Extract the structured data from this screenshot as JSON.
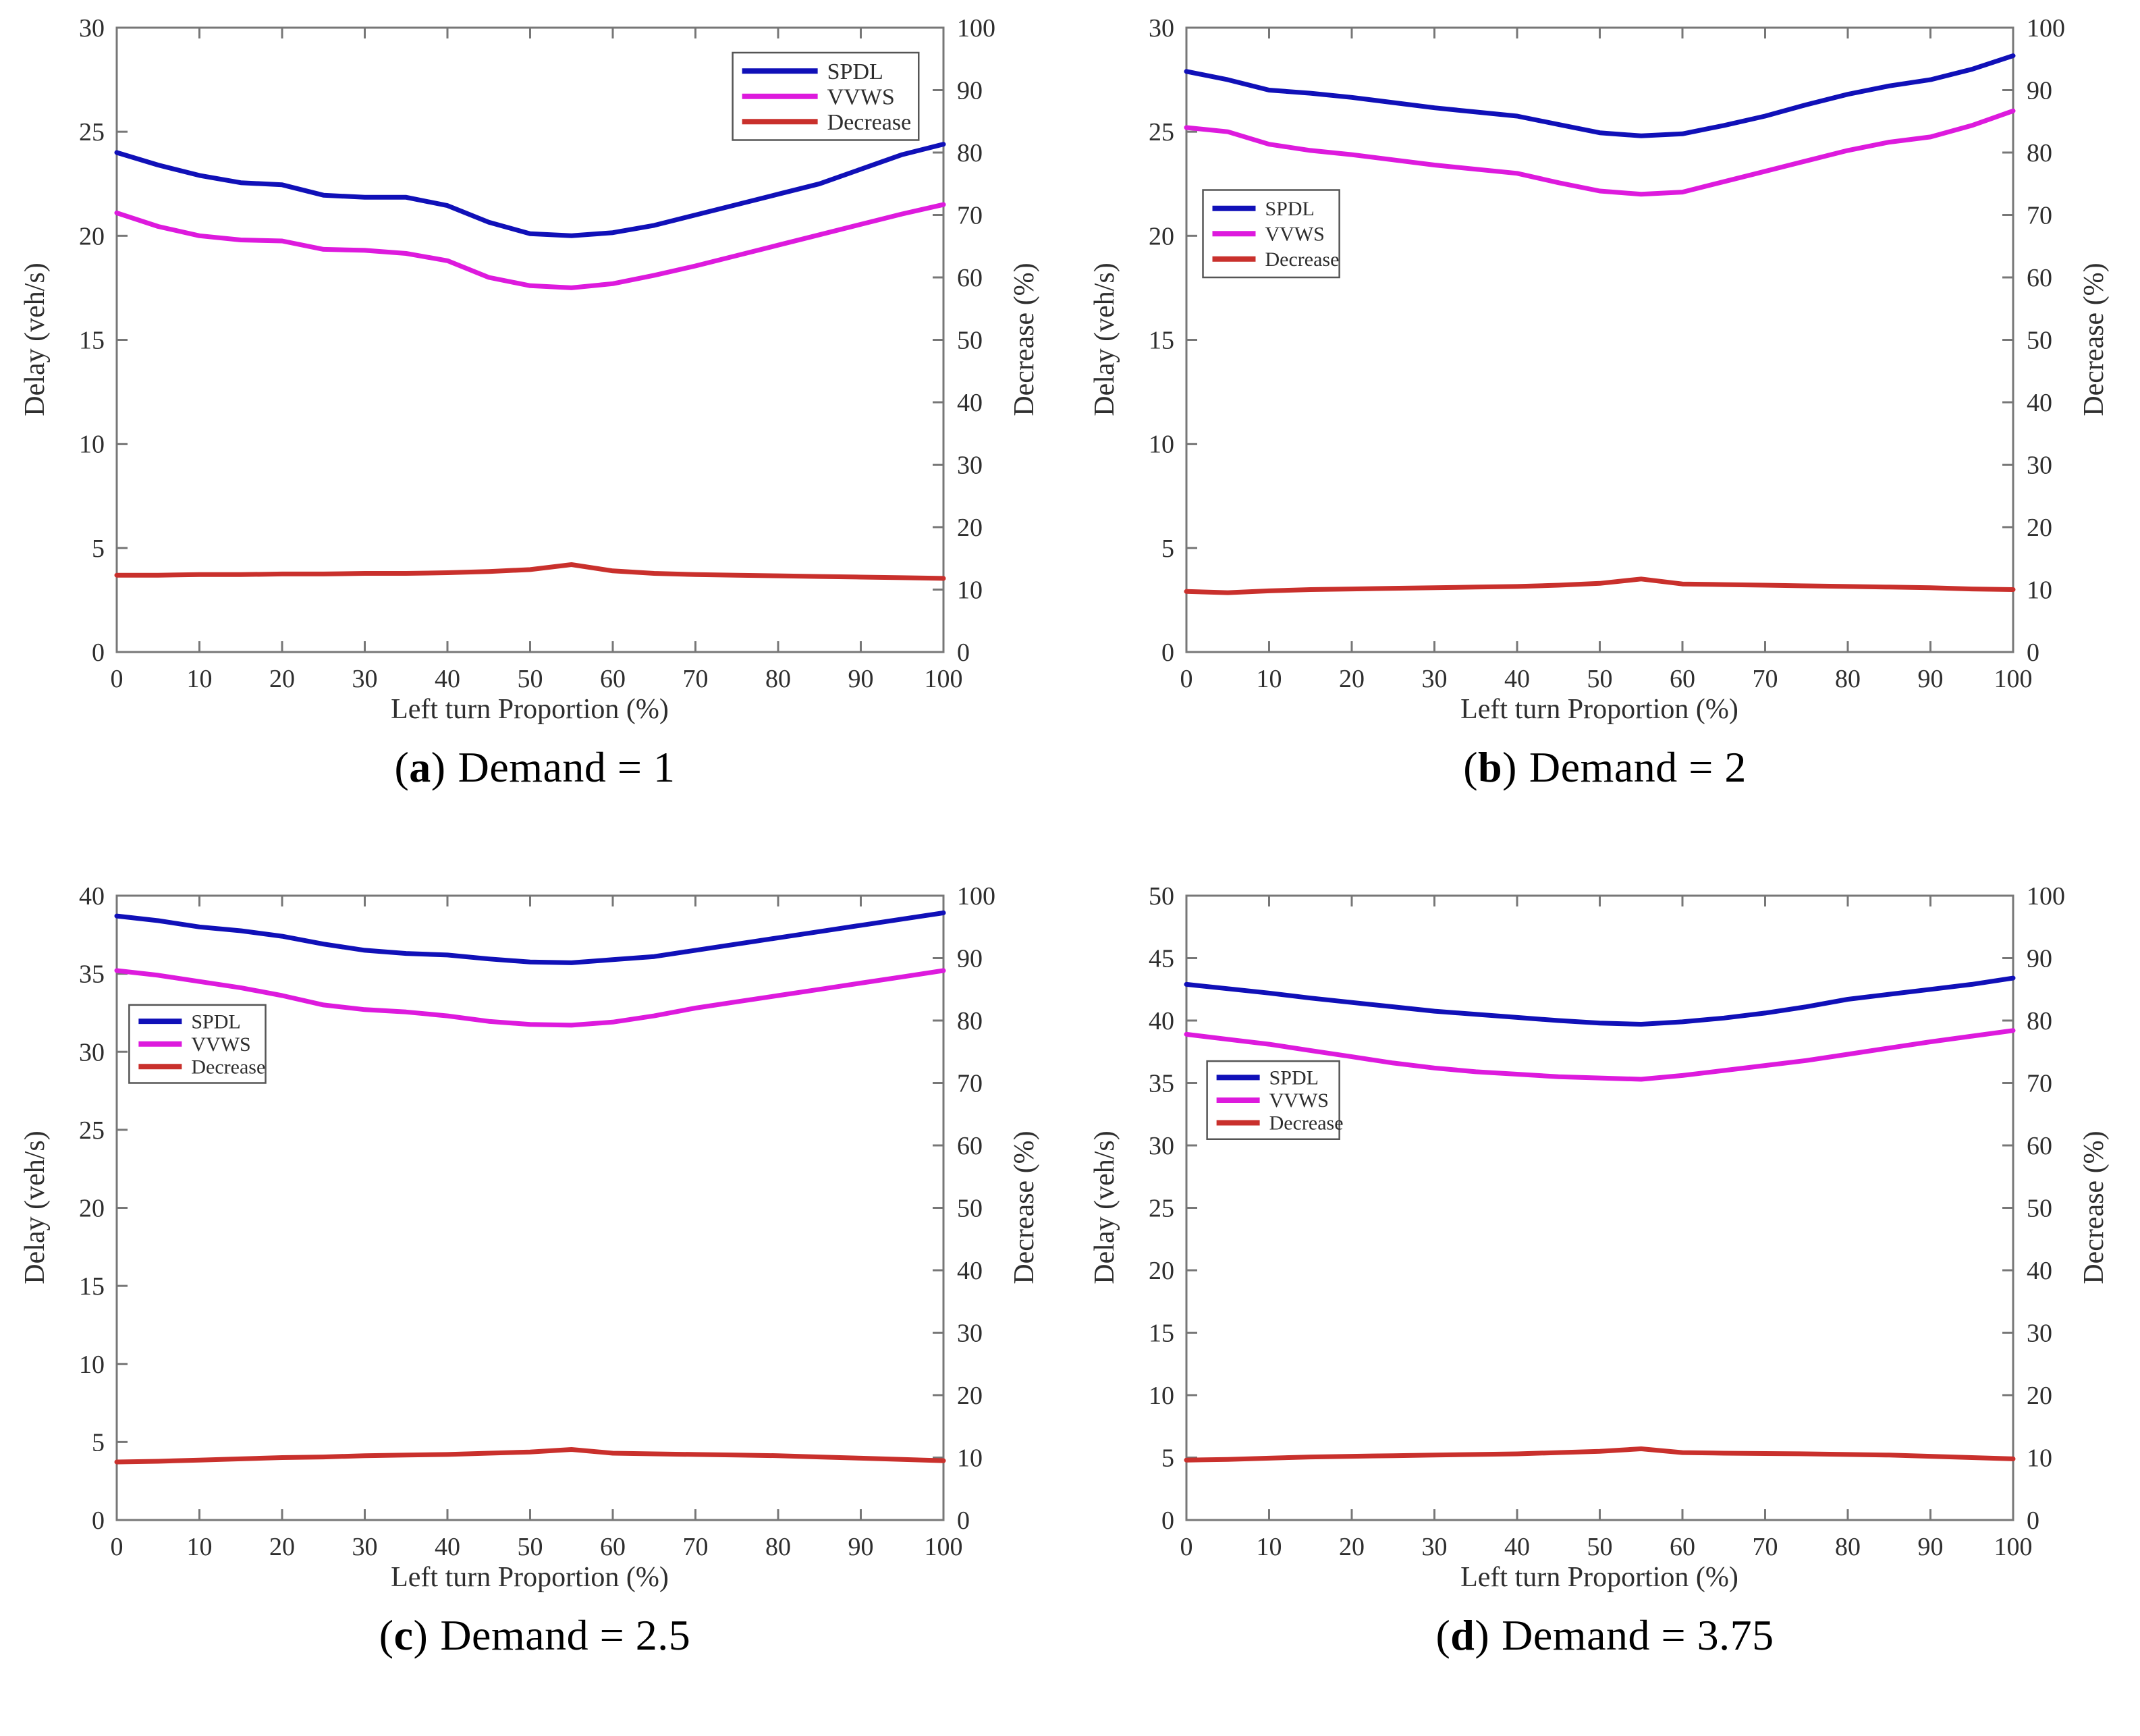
{
  "colors": {
    "spdl": "#1010b8",
    "vvws": "#dd1add",
    "decrease": "#c9302c",
    "axis": "#777777",
    "tick_text": "#2e2e2e"
  },
  "chart_data": [
    {
      "type": "line",
      "caption": {
        "open": "(",
        "letter": "a",
        "close": ")",
        "text": "Demand = 1"
      },
      "xlabel": "Left turn Proportion (%)",
      "ylabel_left": "Delay (veh/s)",
      "ylabel_right": "Decrease (%)",
      "xlim": [
        0,
        100
      ],
      "xtick_step": 10,
      "ylim_left": [
        0,
        30
      ],
      "ytick_step_left": 5,
      "ylim_right": [
        0,
        100
      ],
      "ytick_step_right": 10,
      "grid": false,
      "legend": {
        "fx": 0.745,
        "fy": 0.04,
        "fw": 0.225,
        "fh": 0.14,
        "font": 34,
        "line_len": 112
      },
      "x": [
        0,
        5,
        10,
        15,
        20,
        25,
        30,
        35,
        40,
        45,
        50,
        55,
        60,
        65,
        70,
        75,
        80,
        85,
        90,
        95,
        100
      ],
      "series": [
        {
          "name": "SPDL",
          "color_key": "spdl",
          "axis": "left",
          "values": [
            24.0,
            23.4,
            22.9,
            22.55,
            22.45,
            21.95,
            21.85,
            21.85,
            21.45,
            20.65,
            20.1,
            20.0,
            20.15,
            20.5,
            21.0,
            21.5,
            22.0,
            22.5,
            23.2,
            23.9,
            24.4
          ]
        },
        {
          "name": "VVWS",
          "color_key": "vvws",
          "axis": "left",
          "values": [
            21.1,
            20.45,
            20.0,
            19.8,
            19.75,
            19.35,
            19.3,
            19.15,
            18.8,
            18.0,
            17.6,
            17.5,
            17.7,
            18.1,
            18.55,
            19.05,
            19.55,
            20.05,
            20.55,
            21.05,
            21.5
          ]
        },
        {
          "name": "Decrease",
          "color_key": "decrease",
          "axis": "right",
          "values": [
            12.3,
            12.3,
            12.4,
            12.4,
            12.5,
            12.5,
            12.6,
            12.6,
            12.7,
            12.9,
            13.2,
            14.0,
            13.0,
            12.6,
            12.4,
            12.3,
            12.2,
            12.1,
            12.0,
            11.9,
            11.8
          ]
        }
      ]
    },
    {
      "type": "line",
      "caption": {
        "open": "(",
        "letter": "b",
        "close": ")",
        "text": "Demand = 2"
      },
      "xlabel": "Left turn Proportion (%)",
      "ylabel_left": "Delay (veh/s)",
      "ylabel_right": "Decrease (%)",
      "xlim": [
        0,
        100
      ],
      "xtick_step": 10,
      "ylim_left": [
        0,
        30
      ],
      "ytick_step_left": 5,
      "ylim_right": [
        0,
        100
      ],
      "ytick_step_right": 10,
      "grid": false,
      "legend": {
        "fx": 0.02,
        "fy": 0.26,
        "fw": 0.165,
        "fh": 0.14,
        "font": 30,
        "line_len": 64
      },
      "x": [
        0,
        5,
        10,
        15,
        20,
        25,
        30,
        35,
        40,
        45,
        50,
        55,
        60,
        65,
        70,
        75,
        80,
        85,
        90,
        95,
        100
      ],
      "series": [
        {
          "name": "SPDL",
          "color_key": "spdl",
          "axis": "left",
          "values": [
            27.9,
            27.5,
            27.0,
            26.85,
            26.65,
            26.4,
            26.15,
            25.95,
            25.75,
            25.35,
            24.95,
            24.8,
            24.9,
            25.3,
            25.75,
            26.3,
            26.8,
            27.2,
            27.5,
            28.0,
            28.65
          ]
        },
        {
          "name": "VVWS",
          "color_key": "vvws",
          "axis": "left",
          "values": [
            25.2,
            25.0,
            24.4,
            24.1,
            23.9,
            23.65,
            23.4,
            23.2,
            23.0,
            22.55,
            22.15,
            22.0,
            22.1,
            22.6,
            23.1,
            23.6,
            24.1,
            24.5,
            24.75,
            25.3,
            26.0
          ]
        },
        {
          "name": "Decrease",
          "color_key": "decrease",
          "axis": "right",
          "values": [
            9.7,
            9.5,
            9.8,
            10.0,
            10.1,
            10.2,
            10.3,
            10.4,
            10.5,
            10.7,
            11.0,
            11.7,
            10.9,
            10.8,
            10.7,
            10.6,
            10.5,
            10.4,
            10.3,
            10.1,
            10.0
          ]
        }
      ]
    },
    {
      "type": "line",
      "caption": {
        "open": "(",
        "letter": "c",
        "close": ")",
        "text": "Demand = 2.5"
      },
      "xlabel": "Left turn Proportion (%)",
      "ylabel_left": "Delay (veh/s)",
      "ylabel_right": "Decrease (%)",
      "xlim": [
        0,
        100
      ],
      "xtick_step": 10,
      "ylim_left": [
        0,
        40
      ],
      "ytick_step_left": 5,
      "ylim_right": [
        0,
        100
      ],
      "ytick_step_right": 10,
      "grid": false,
      "legend": {
        "fx": 0.015,
        "fy": 0.175,
        "fw": 0.165,
        "fh": 0.125,
        "font": 30,
        "line_len": 64
      },
      "x": [
        0,
        5,
        10,
        15,
        20,
        25,
        30,
        35,
        40,
        45,
        50,
        55,
        60,
        65,
        70,
        75,
        80,
        85,
        90,
        95,
        100
      ],
      "series": [
        {
          "name": "SPDL",
          "color_key": "spdl",
          "axis": "left",
          "values": [
            38.7,
            38.4,
            38.0,
            37.75,
            37.4,
            36.9,
            36.5,
            36.3,
            36.2,
            35.95,
            35.75,
            35.7,
            35.9,
            36.1,
            36.5,
            36.9,
            37.3,
            37.7,
            38.1,
            38.5,
            38.9
          ]
        },
        {
          "name": "VVWS",
          "color_key": "vvws",
          "axis": "left",
          "values": [
            35.2,
            34.9,
            34.5,
            34.1,
            33.6,
            33.0,
            32.7,
            32.55,
            32.3,
            31.95,
            31.75,
            31.7,
            31.9,
            32.3,
            32.8,
            33.2,
            33.6,
            34.0,
            34.4,
            34.8,
            35.2
          ]
        },
        {
          "name": "Decrease",
          "color_key": "decrease",
          "axis": "right",
          "values": [
            9.3,
            9.4,
            9.6,
            9.8,
            10.0,
            10.1,
            10.3,
            10.4,
            10.5,
            10.7,
            10.9,
            11.3,
            10.7,
            10.6,
            10.5,
            10.4,
            10.3,
            10.1,
            9.9,
            9.7,
            9.5
          ]
        }
      ]
    },
    {
      "type": "line",
      "caption": {
        "open": "(",
        "letter": "d",
        "close": ")",
        "text": "Demand = 3.75"
      },
      "xlabel": "Left turn Proportion (%)",
      "ylabel_left": "Delay (veh/s)",
      "ylabel_right": "Decrease (%)",
      "xlim": [
        0,
        100
      ],
      "xtick_step": 10,
      "ylim_left": [
        0,
        50
      ],
      "ytick_step_left": 5,
      "ylim_right": [
        0,
        100
      ],
      "ytick_step_right": 10,
      "grid": false,
      "legend": {
        "fx": 0.025,
        "fy": 0.265,
        "fw": 0.16,
        "fh": 0.125,
        "font": 30,
        "line_len": 64
      },
      "x": [
        0,
        5,
        10,
        15,
        20,
        25,
        30,
        35,
        40,
        45,
        50,
        55,
        60,
        65,
        70,
        75,
        80,
        85,
        90,
        95,
        100
      ],
      "series": [
        {
          "name": "SPDL",
          "color_key": "spdl",
          "axis": "left",
          "values": [
            42.9,
            42.55,
            42.2,
            41.8,
            41.45,
            41.1,
            40.75,
            40.5,
            40.25,
            40.0,
            39.8,
            39.7,
            39.9,
            40.2,
            40.6,
            41.1,
            41.7,
            42.1,
            42.5,
            42.9,
            43.4
          ]
        },
        {
          "name": "VVWS",
          "color_key": "vvws",
          "axis": "left",
          "values": [
            38.9,
            38.5,
            38.1,
            37.6,
            37.1,
            36.6,
            36.2,
            35.9,
            35.7,
            35.5,
            35.4,
            35.3,
            35.6,
            36.0,
            36.4,
            36.8,
            37.3,
            37.8,
            38.3,
            38.75,
            39.2
          ]
        },
        {
          "name": "Decrease",
          "color_key": "decrease",
          "axis": "right",
          "values": [
            9.6,
            9.7,
            9.9,
            10.1,
            10.2,
            10.3,
            10.4,
            10.5,
            10.6,
            10.8,
            11.0,
            11.4,
            10.8,
            10.7,
            10.65,
            10.6,
            10.5,
            10.4,
            10.2,
            10.0,
            9.8
          ]
        }
      ]
    }
  ]
}
